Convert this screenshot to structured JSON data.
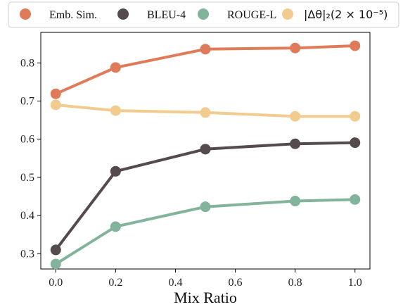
{
  "chart_data": {
    "type": "line",
    "xlabel": "Mix Ratio",
    "ylabel": "",
    "title": "",
    "x": [
      0.0,
      0.2,
      0.5,
      0.8,
      1.0
    ],
    "xlim": [
      -0.05,
      1.05
    ],
    "ylim": [
      0.26,
      0.88
    ],
    "xticks": [
      "0.0",
      "0.2",
      "0.4",
      "0.6",
      "0.8",
      "1.0"
    ],
    "xtick_values": [
      0.0,
      0.2,
      0.4,
      0.6,
      0.8,
      1.0
    ],
    "yticks": [
      "0.3",
      "0.4",
      "0.5",
      "0.6",
      "0.7",
      "0.8"
    ],
    "ytick_values": [
      0.3,
      0.4,
      0.5,
      0.6,
      0.7,
      0.8
    ],
    "grid": false,
    "legend_position": "top, outside",
    "series": [
      {
        "name": "Emb. Sim.",
        "color": "#E07B5A",
        "values": [
          0.719,
          0.788,
          0.836,
          0.839,
          0.845
        ]
      },
      {
        "name": "BLEU-4",
        "color": "#554A4C",
        "values": [
          0.31,
          0.516,
          0.574,
          0.588,
          0.591
        ]
      },
      {
        "name": "ROUGE-L",
        "color": "#82B39B",
        "values": [
          0.273,
          0.371,
          0.423,
          0.438,
          0.442
        ]
      },
      {
        "name": "|Δθ|₂(2 × 10⁻⁵)",
        "color": "#F2CC8F",
        "values": [
          0.69,
          0.675,
          0.67,
          0.66,
          0.66
        ]
      }
    ]
  }
}
